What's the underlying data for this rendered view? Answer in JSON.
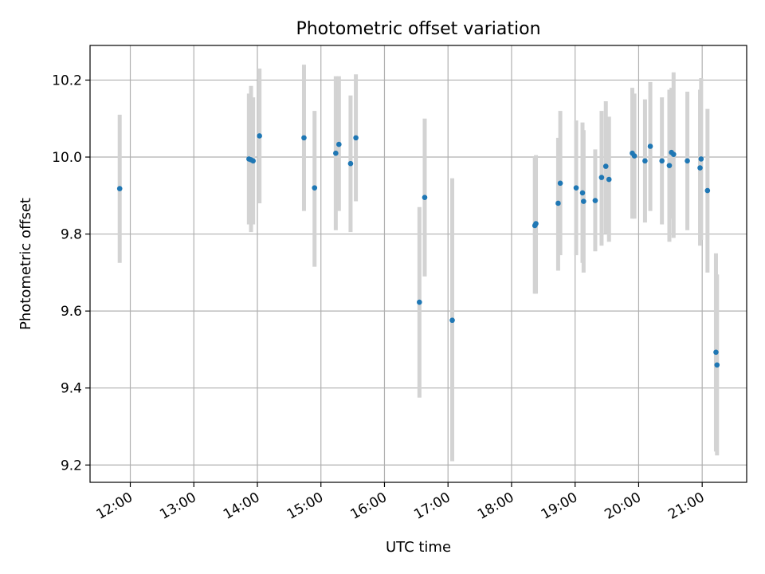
{
  "chart_data": {
    "type": "scatter",
    "title": "Photometric offset variation",
    "xlabel": "UTC time",
    "ylabel": "Photometric offset",
    "xlim": [
      "11:22",
      "21:42"
    ],
    "ylim": [
      9.155,
      10.29
    ],
    "x_ticks": [
      "12:00",
      "13:00",
      "14:00",
      "15:00",
      "16:00",
      "17:00",
      "18:00",
      "19:00",
      "20:00",
      "21:00"
    ],
    "y_ticks": [
      9.2,
      9.4,
      9.6,
      9.8,
      10.0,
      10.2
    ],
    "y_tick_labels": [
      "9.2",
      "9.4",
      "9.6",
      "9.8",
      "10.0",
      "10.2"
    ],
    "grid": true,
    "point_color": "#1f77b4",
    "errorbar_color": "#d3d3d3",
    "points": [
      {
        "x": "11:50",
        "y": 9.918,
        "ylo": 9.725,
        "yhi": 10.11
      },
      {
        "x": "13:52",
        "y": 9.995,
        "ylo": 9.825,
        "yhi": 10.165
      },
      {
        "x": "13:54",
        "y": 9.993,
        "ylo": 9.805,
        "yhi": 10.185
      },
      {
        "x": "13:56",
        "y": 9.99,
        "ylo": 9.825,
        "yhi": 10.155
      },
      {
        "x": "14:02",
        "y": 10.055,
        "ylo": 9.88,
        "yhi": 10.23
      },
      {
        "x": "14:44",
        "y": 10.05,
        "ylo": 9.86,
        "yhi": 10.24
      },
      {
        "x": "14:54",
        "y": 9.92,
        "ylo": 9.715,
        "yhi": 10.12
      },
      {
        "x": "15:14",
        "y": 10.01,
        "ylo": 9.81,
        "yhi": 10.21
      },
      {
        "x": "15:17",
        "y": 10.033,
        "ylo": 9.86,
        "yhi": 10.21
      },
      {
        "x": "15:28",
        "y": 9.983,
        "ylo": 9.805,
        "yhi": 10.16
      },
      {
        "x": "15:33",
        "y": 10.05,
        "ylo": 9.885,
        "yhi": 10.215
      },
      {
        "x": "16:33",
        "y": 9.623,
        "ylo": 9.375,
        "yhi": 9.87
      },
      {
        "x": "16:38",
        "y": 9.895,
        "ylo": 9.69,
        "yhi": 10.1
      },
      {
        "x": "17:04",
        "y": 9.576,
        "ylo": 9.21,
        "yhi": 9.945
      },
      {
        "x": "18:22",
        "y": 9.822,
        "ylo": 9.645,
        "yhi": 10.0
      },
      {
        "x": "18:23",
        "y": 9.827,
        "ylo": 9.645,
        "yhi": 10.005
      },
      {
        "x": "18:44",
        "y": 9.88,
        "ylo": 9.705,
        "yhi": 10.05
      },
      {
        "x": "18:46",
        "y": 9.932,
        "ylo": 9.745,
        "yhi": 10.12
      },
      {
        "x": "19:01",
        "y": 9.92,
        "ylo": 9.745,
        "yhi": 10.095
      },
      {
        "x": "19:07",
        "y": 9.907,
        "ylo": 9.725,
        "yhi": 10.09
      },
      {
        "x": "19:08",
        "y": 9.885,
        "ylo": 9.7,
        "yhi": 10.07
      },
      {
        "x": "19:19",
        "y": 9.887,
        "ylo": 9.755,
        "yhi": 10.02
      },
      {
        "x": "19:25",
        "y": 9.947,
        "ylo": 9.77,
        "yhi": 10.12
      },
      {
        "x": "19:29",
        "y": 9.976,
        "ylo": 9.8,
        "yhi": 10.145
      },
      {
        "x": "19:32",
        "y": 9.942,
        "ylo": 9.78,
        "yhi": 10.105
      },
      {
        "x": "19:54",
        "y": 10.01,
        "ylo": 9.84,
        "yhi": 10.18
      },
      {
        "x": "19:56",
        "y": 10.003,
        "ylo": 9.84,
        "yhi": 10.165
      },
      {
        "x": "20:06",
        "y": 9.99,
        "ylo": 9.83,
        "yhi": 10.15
      },
      {
        "x": "20:11",
        "y": 10.028,
        "ylo": 9.86,
        "yhi": 10.195
      },
      {
        "x": "20:22",
        "y": 9.99,
        "ylo": 9.825,
        "yhi": 10.155
      },
      {
        "x": "20:29",
        "y": 9.978,
        "ylo": 9.78,
        "yhi": 10.175
      },
      {
        "x": "20:31",
        "y": 10.012,
        "ylo": 9.84,
        "yhi": 10.18
      },
      {
        "x": "20:33",
        "y": 10.007,
        "ylo": 9.79,
        "yhi": 10.22
      },
      {
        "x": "20:46",
        "y": 9.99,
        "ylo": 9.81,
        "yhi": 10.17
      },
      {
        "x": "20:58",
        "y": 9.972,
        "ylo": 9.77,
        "yhi": 10.175
      },
      {
        "x": "20:59",
        "y": 9.995,
        "ylo": 9.785,
        "yhi": 10.205
      },
      {
        "x": "21:05",
        "y": 9.913,
        "ylo": 9.7,
        "yhi": 10.125
      },
      {
        "x": "21:13",
        "y": 9.493,
        "ylo": 9.235,
        "yhi": 9.75
      },
      {
        "x": "21:14",
        "y": 9.46,
        "ylo": 9.225,
        "yhi": 9.695
      }
    ]
  }
}
